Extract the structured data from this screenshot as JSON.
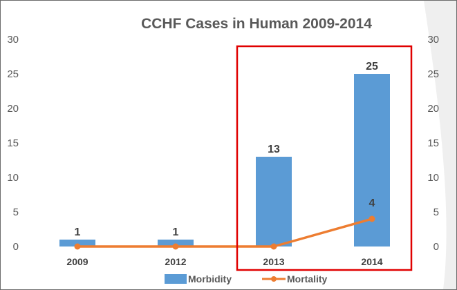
{
  "chart_data": {
    "type": "bar",
    "title": "CCHF Cases in Human 2009-2014",
    "categories": [
      "2009",
      "2012",
      "2013",
      "2014"
    ],
    "series": [
      {
        "name": "Morbidity",
        "kind": "bar",
        "color": "#5b9bd5",
        "values": [
          1,
          1,
          13,
          25
        ]
      },
      {
        "name": "Mortality",
        "kind": "line",
        "color": "#ed7d31",
        "values": [
          0,
          0,
          0,
          4
        ]
      }
    ],
    "data_labels": [
      "1",
      "1",
      "13",
      "25",
      "4"
    ],
    "ylim": [
      0,
      30
    ],
    "yticks": [
      "0",
      "5",
      "10",
      "15",
      "20",
      "25",
      "30"
    ],
    "secondary_ylim": [
      0,
      30
    ],
    "secondary_yticks": [
      "0",
      "5",
      "10",
      "15",
      "20",
      "25",
      "30"
    ],
    "grid": false,
    "legend": "bottom",
    "highlight": {
      "categories": [
        "2013",
        "2014"
      ],
      "color": "#e00000"
    }
  }
}
